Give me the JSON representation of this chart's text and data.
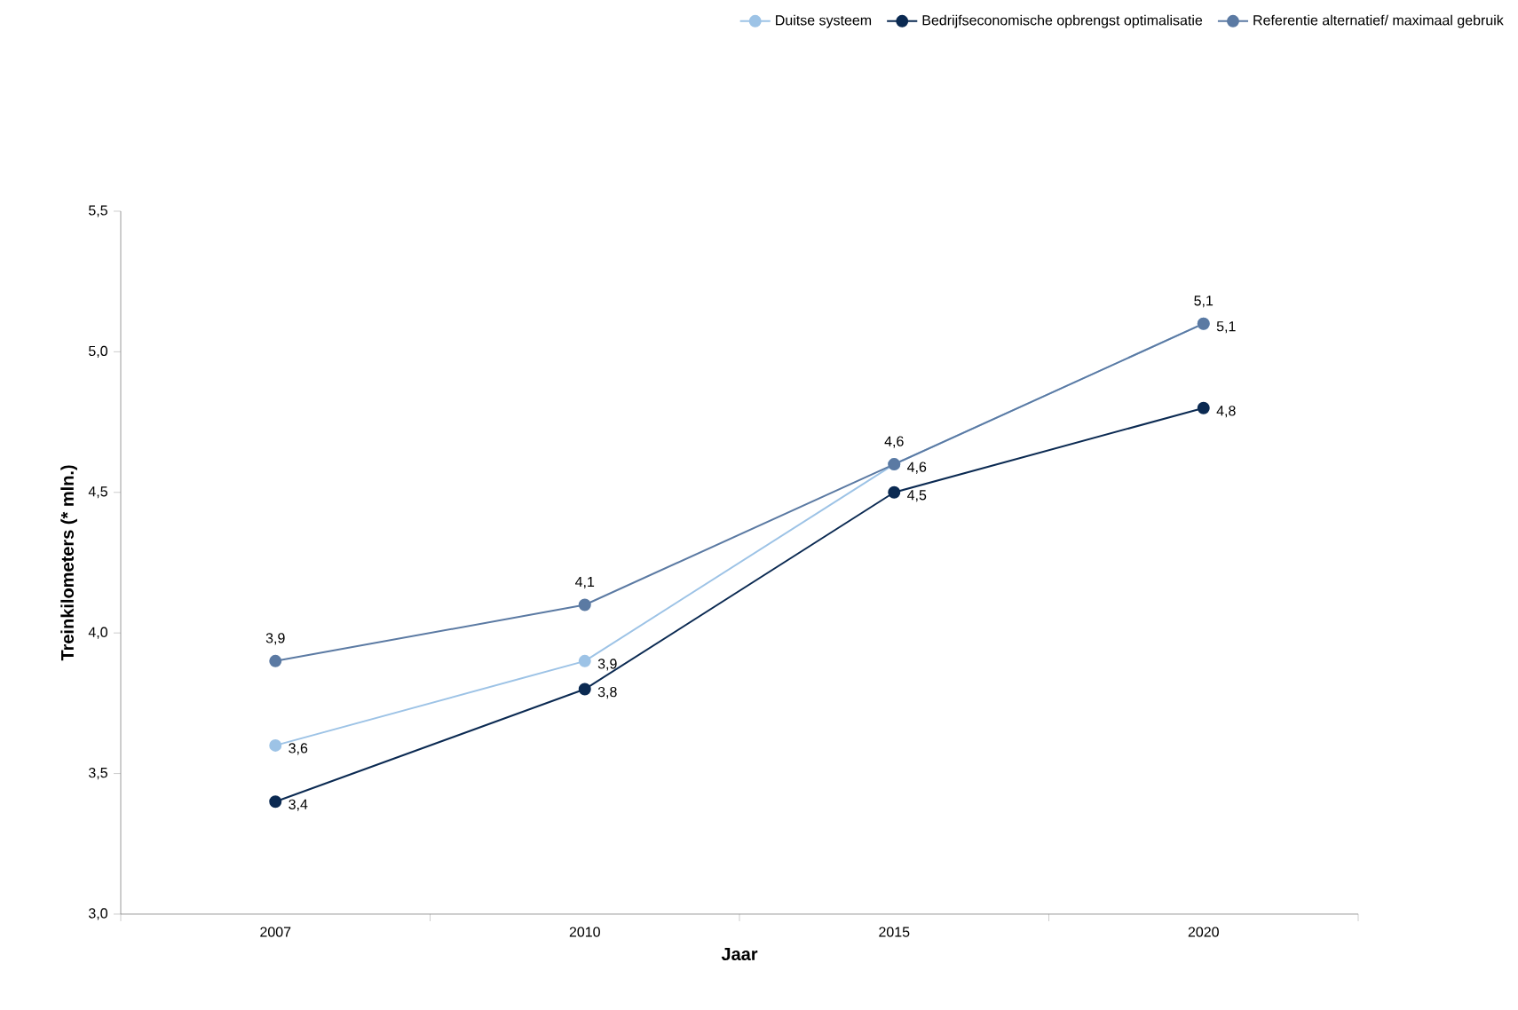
{
  "chart_data": {
    "type": "line",
    "xlabel": "Jaar",
    "ylabel": "Treinkilometers (* mln.)",
    "categories": [
      "2007",
      "2010",
      "2015",
      "2020"
    ],
    "series": [
      {
        "name": "Duitse systeem",
        "color": "#9dc3e6",
        "values": [
          3.6,
          3.9,
          4.6,
          5.1
        ],
        "value_labels": [
          "3,6",
          "3,9",
          "4,6",
          "5,1"
        ]
      },
      {
        "name": "Bedrijfseconomische opbrengst optimalisatie",
        "color": "#0b2a52",
        "values": [
          3.4,
          3.8,
          4.5,
          4.8
        ],
        "value_labels": [
          "3,4",
          "3,8",
          "4,5",
          "4,8"
        ]
      },
      {
        "name": "Referentie alternatief/ maximaal gebruik",
        "color": "#5b7aa3",
        "values": [
          3.9,
          4.1,
          4.6,
          5.1
        ],
        "value_labels": [
          "3,9",
          "4,1",
          "4,6",
          "5,1"
        ]
      }
    ],
    "ylim": [
      3.0,
      5.5
    ],
    "yticks": [
      {
        "value": 3.0,
        "label": "3,0"
      },
      {
        "value": 3.5,
        "label": "3,5"
      },
      {
        "value": 4.0,
        "label": "4,0"
      },
      {
        "value": 4.5,
        "label": "4,5"
      },
      {
        "value": 5.0,
        "label": "5,0"
      },
      {
        "value": 5.5,
        "label": "5,5"
      }
    ],
    "legend": "top right",
    "grid": false,
    "marker": "circle",
    "line_style": "solid"
  }
}
